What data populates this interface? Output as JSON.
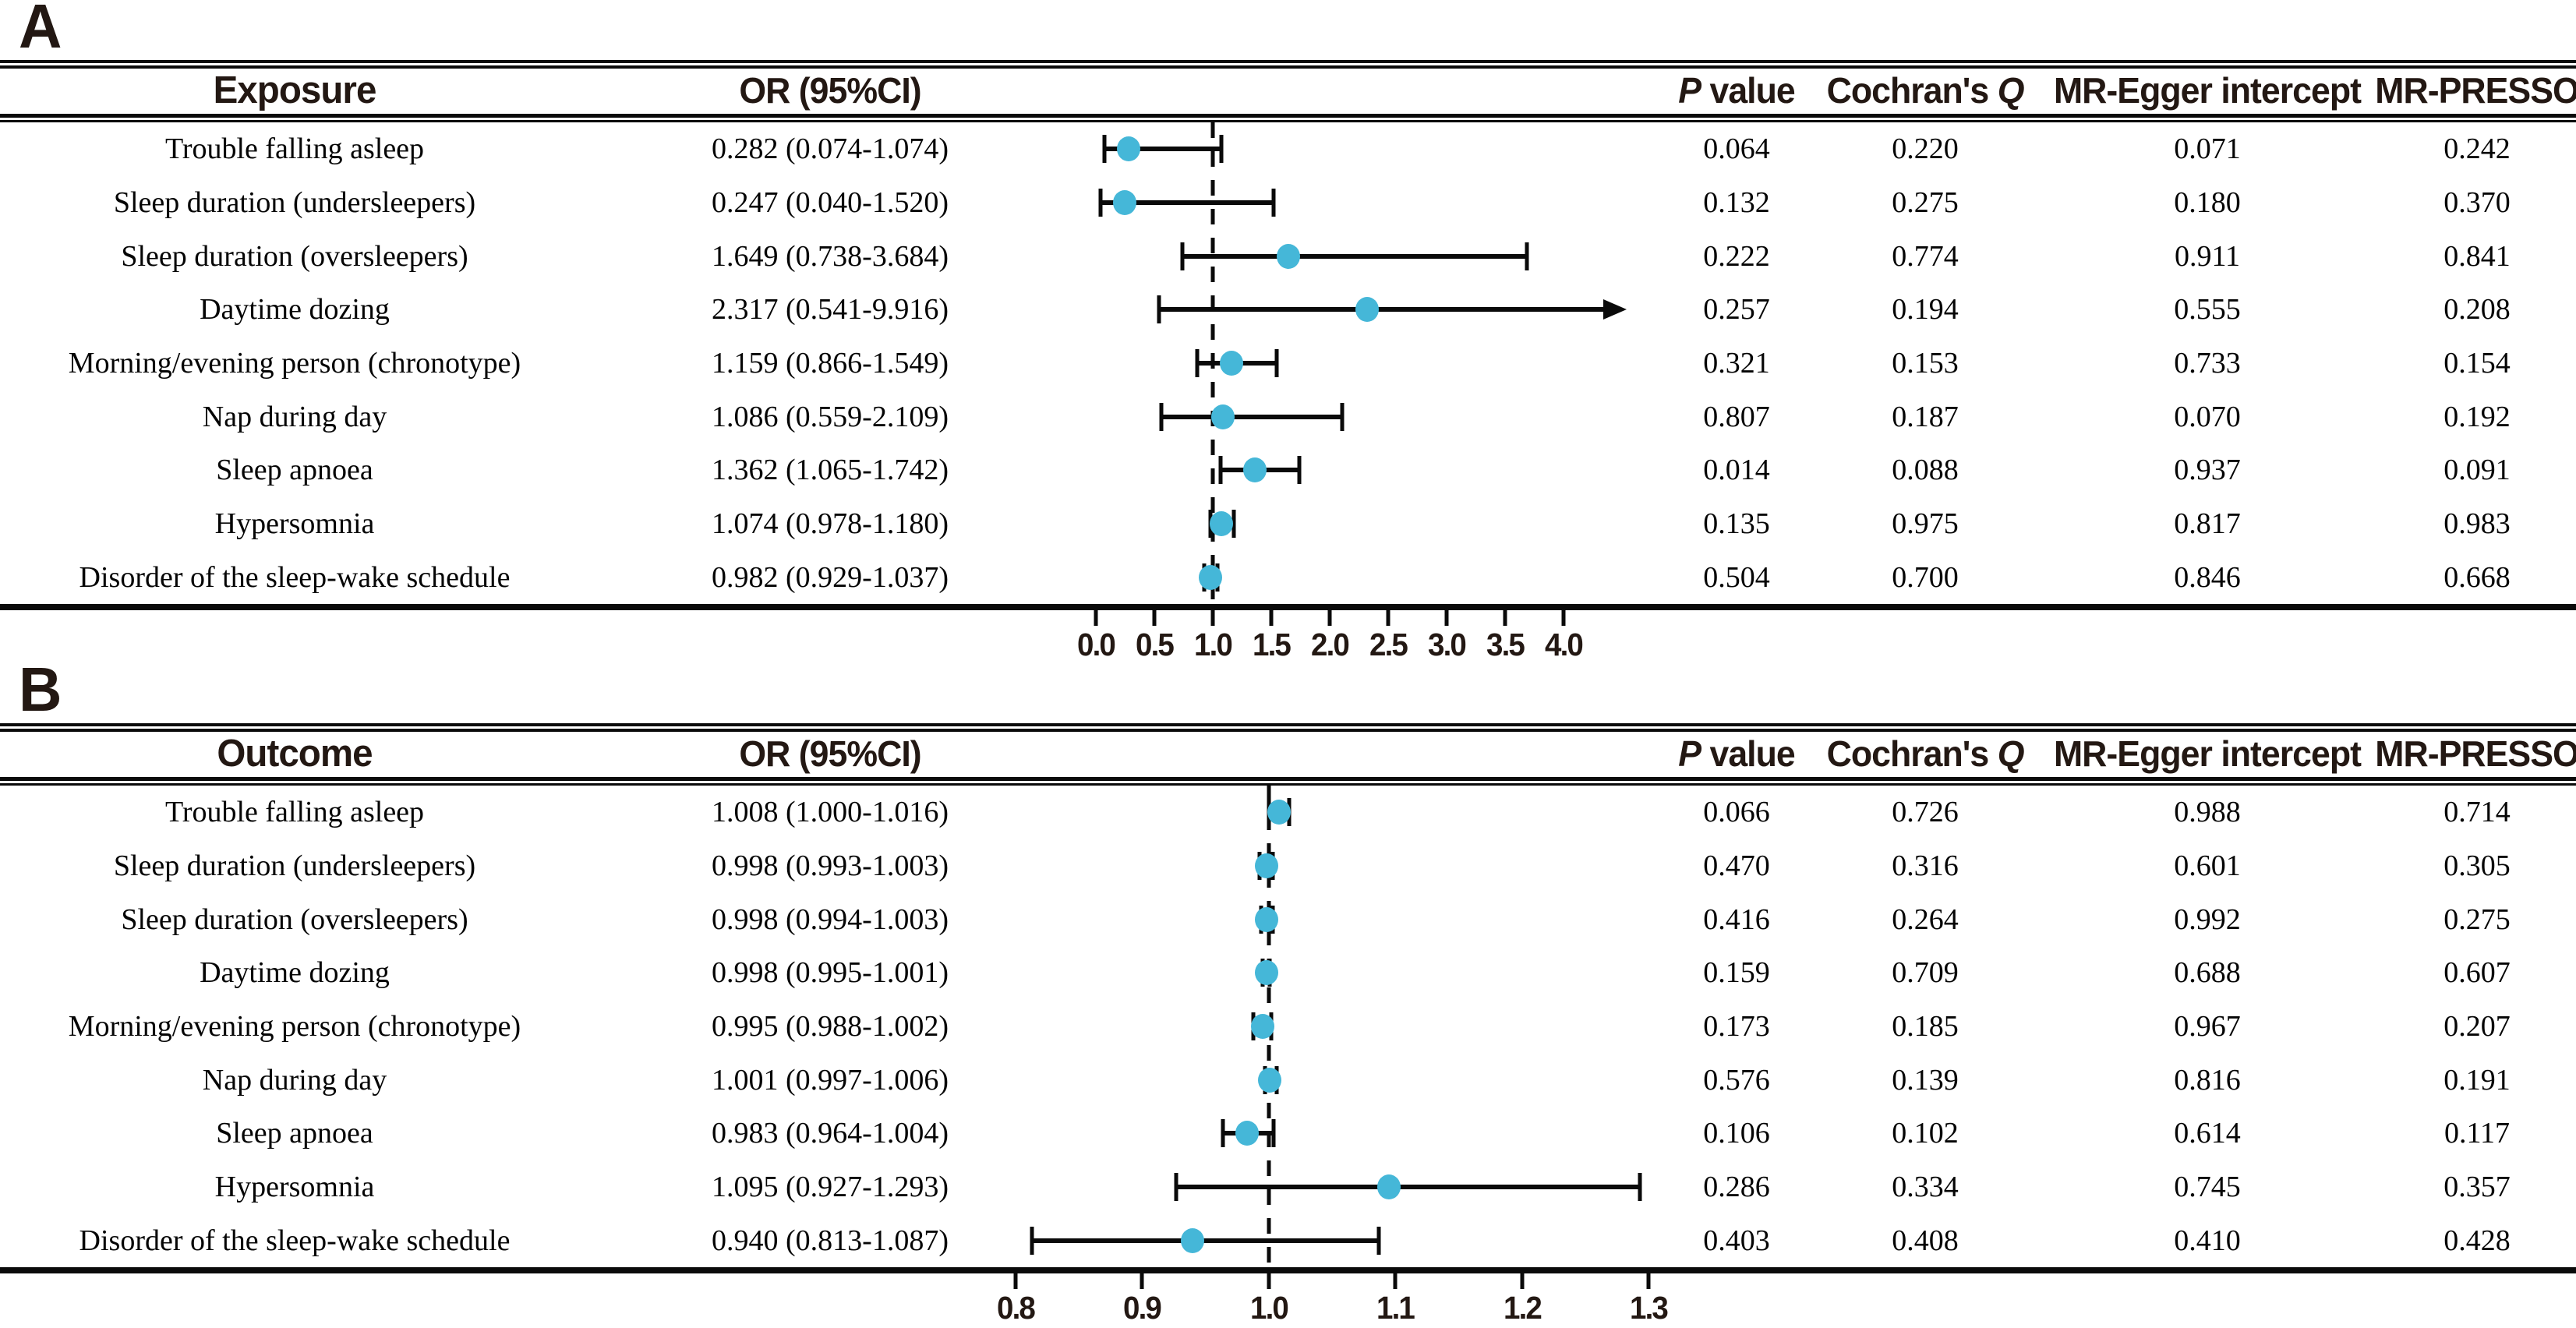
{
  "figure": {
    "marker_color": "#45b7d8",
    "line_color": "#0a0a0a",
    "header_text_color": "#231813"
  },
  "chart_data": [
    {
      "type": "forest",
      "panel_label": "A",
      "columns": [
        "Exposure",
        "OR (95%CI)",
        "P value",
        "Cochran's Q",
        "MR-Egger intercept",
        "MR-PRESSO"
      ],
      "x_axis": {
        "min": 0.0,
        "max": 4.0,
        "ticks": [
          0.0,
          0.5,
          1.0,
          1.5,
          2.0,
          2.5,
          3.0,
          3.5,
          4.0
        ],
        "tick_labels": [
          "0.0",
          "0.5",
          "1.0",
          "1.5",
          "2.0",
          "2.5",
          "3.0",
          "3.5",
          "4.0"
        ],
        "reference_line": 1.0
      },
      "rows": [
        {
          "label": "Trouble falling asleep",
          "or": 0.282,
          "ci_low": 0.074,
          "ci_high": 1.074,
          "or_ci_text": "0.282 (0.074-1.074)",
          "p_value": "0.064",
          "cochrans_q": "0.220",
          "mr_egger_intercept": "0.071",
          "mr_presso": "0.242"
        },
        {
          "label": "Sleep duration (undersleepers)",
          "or": 0.247,
          "ci_low": 0.04,
          "ci_high": 1.52,
          "or_ci_text": "0.247 (0.040-1.520)",
          "p_value": "0.132",
          "cochrans_q": "0.275",
          "mr_egger_intercept": "0.180",
          "mr_presso": "0.370"
        },
        {
          "label": "Sleep duration (oversleepers)",
          "or": 1.649,
          "ci_low": 0.738,
          "ci_high": 3.684,
          "or_ci_text": "1.649 (0.738-3.684)",
          "p_value": "0.222",
          "cochrans_q": "0.774",
          "mr_egger_intercept": "0.911",
          "mr_presso": "0.841"
        },
        {
          "label": "Daytime dozing",
          "or": 2.317,
          "ci_low": 0.541,
          "ci_high": 9.916,
          "or_ci_text": "2.317 (0.541-9.916)",
          "p_value": "0.257",
          "cochrans_q": "0.194",
          "mr_egger_intercept": "0.555",
          "mr_presso": "0.208"
        },
        {
          "label": "Morning/evening person (chronotype)",
          "or": 1.159,
          "ci_low": 0.866,
          "ci_high": 1.549,
          "or_ci_text": "1.159 (0.866-1.549)",
          "p_value": "0.321",
          "cochrans_q": "0.153",
          "mr_egger_intercept": "0.733",
          "mr_presso": "0.154"
        },
        {
          "label": "Nap during day",
          "or": 1.086,
          "ci_low": 0.559,
          "ci_high": 2.109,
          "or_ci_text": "1.086 (0.559-2.109)",
          "p_value": "0.807",
          "cochrans_q": "0.187",
          "mr_egger_intercept": "0.070",
          "mr_presso": "0.192"
        },
        {
          "label": "Sleep apnoea",
          "or": 1.362,
          "ci_low": 1.065,
          "ci_high": 1.742,
          "or_ci_text": "1.362 (1.065-1.742)",
          "p_value": "0.014",
          "cochrans_q": "0.088",
          "mr_egger_intercept": "0.937",
          "mr_presso": "0.091"
        },
        {
          "label": "Hypersomnia",
          "or": 1.074,
          "ci_low": 0.978,
          "ci_high": 1.18,
          "or_ci_text": "1.074 (0.978-1.180)",
          "p_value": "0.135",
          "cochrans_q": "0.975",
          "mr_egger_intercept": "0.817",
          "mr_presso": "0.983"
        },
        {
          "label": "Disorder of the sleep-wake schedule",
          "or": 0.982,
          "ci_low": 0.929,
          "ci_high": 1.037,
          "or_ci_text": "0.982 (0.929-1.037)",
          "p_value": "0.504",
          "cochrans_q": "0.700",
          "mr_egger_intercept": "0.846",
          "mr_presso": "0.668"
        }
      ]
    },
    {
      "type": "forest",
      "panel_label": "B",
      "columns": [
        "Outcome",
        "OR (95%CI)",
        "P value",
        "Cochran's Q",
        "MR-Egger intercept",
        "MR-PRESSO"
      ],
      "x_axis": {
        "min": 0.8,
        "max": 1.3,
        "ticks": [
          0.8,
          0.9,
          1.0,
          1.1,
          1.2,
          1.3
        ],
        "tick_labels": [
          "0.8",
          "0.9",
          "1.0",
          "1.1",
          "1.2",
          "1.3"
        ],
        "reference_line": 1.0
      },
      "rows": [
        {
          "label": "Trouble falling asleep",
          "or": 1.008,
          "ci_low": 1.0,
          "ci_high": 1.016,
          "or_ci_text": "1.008 (1.000-1.016)",
          "p_value": "0.066",
          "cochrans_q": "0.726",
          "mr_egger_intercept": "0.988",
          "mr_presso": "0.714"
        },
        {
          "label": "Sleep duration (undersleepers)",
          "or": 0.998,
          "ci_low": 0.993,
          "ci_high": 1.003,
          "or_ci_text": "0.998 (0.993-1.003)",
          "p_value": "0.470",
          "cochrans_q": "0.316",
          "mr_egger_intercept": "0.601",
          "mr_presso": "0.305"
        },
        {
          "label": "Sleep duration (oversleepers)",
          "or": 0.998,
          "ci_low": 0.994,
          "ci_high": 1.003,
          "or_ci_text": "0.998 (0.994-1.003)",
          "p_value": "0.416",
          "cochrans_q": "0.264",
          "mr_egger_intercept": "0.992",
          "mr_presso": "0.275"
        },
        {
          "label": "Daytime dozing",
          "or": 0.998,
          "ci_low": 0.995,
          "ci_high": 1.001,
          "or_ci_text": "0.998 (0.995-1.001)",
          "p_value": "0.159",
          "cochrans_q": "0.709",
          "mr_egger_intercept": "0.688",
          "mr_presso": "0.607"
        },
        {
          "label": "Morning/evening person (chronotype)",
          "or": 0.995,
          "ci_low": 0.988,
          "ci_high": 1.002,
          "or_ci_text": "0.995 (0.988-1.002)",
          "p_value": "0.173",
          "cochrans_q": "0.185",
          "mr_egger_intercept": "0.967",
          "mr_presso": "0.207"
        },
        {
          "label": "Nap during day",
          "or": 1.001,
          "ci_low": 0.997,
          "ci_high": 1.006,
          "or_ci_text": "1.001 (0.997-1.006)",
          "p_value": "0.576",
          "cochrans_q": "0.139",
          "mr_egger_intercept": "0.816",
          "mr_presso": "0.191"
        },
        {
          "label": "Sleep apnoea",
          "or": 0.983,
          "ci_low": 0.964,
          "ci_high": 1.004,
          "or_ci_text": "0.983 (0.964-1.004)",
          "p_value": "0.106",
          "cochrans_q": "0.102",
          "mr_egger_intercept": "0.614",
          "mr_presso": "0.117"
        },
        {
          "label": "Hypersomnia",
          "or": 1.095,
          "ci_low": 0.927,
          "ci_high": 1.293,
          "or_ci_text": "1.095 (0.927-1.293)",
          "p_value": "0.286",
          "cochrans_q": "0.334",
          "mr_egger_intercept": "0.745",
          "mr_presso": "0.357"
        },
        {
          "label": "Disorder of the sleep-wake schedule",
          "or": 0.94,
          "ci_low": 0.813,
          "ci_high": 1.087,
          "or_ci_text": "0.940 (0.813-1.087)",
          "p_value": "0.403",
          "cochrans_q": "0.408",
          "mr_egger_intercept": "0.410",
          "mr_presso": "0.428"
        }
      ]
    }
  ]
}
